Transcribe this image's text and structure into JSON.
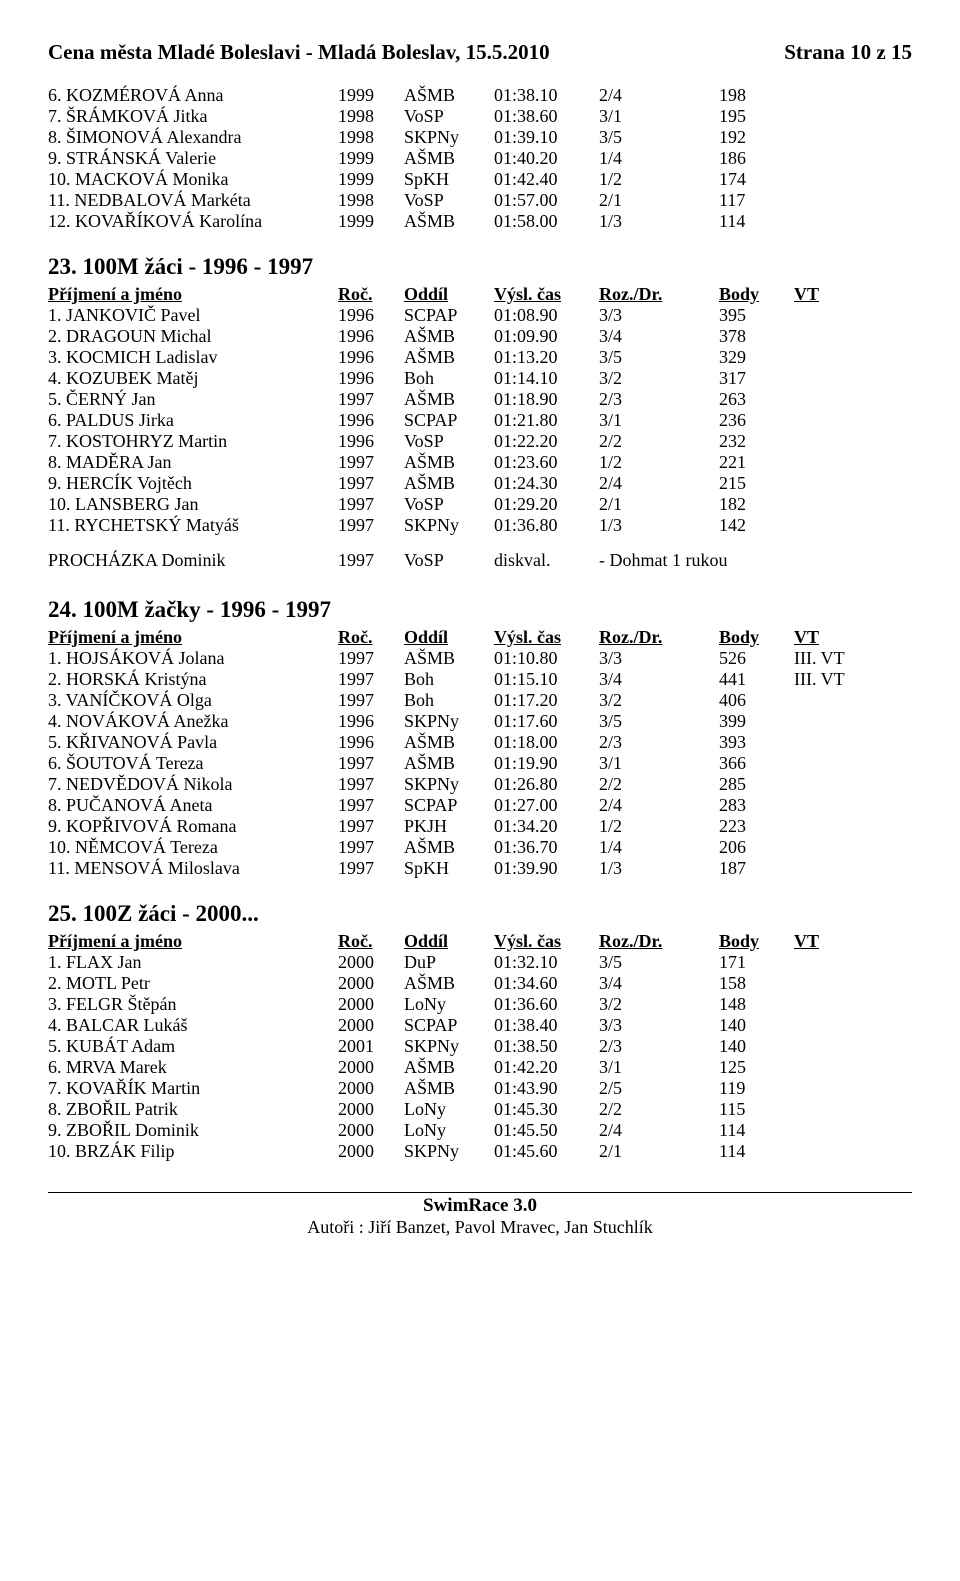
{
  "header": {
    "title": "Cena města Mladé Boleslavi - Mladá Boleslav, 15.5.2010",
    "page": "Strana 10 z 15"
  },
  "columns": {
    "name": "Příjmení a jméno",
    "year": "Roč.",
    "club": "Oddíl",
    "time": "Výsl. čas",
    "roz": "Roz./Dr.",
    "body": "Body",
    "vt": "VT"
  },
  "top_rows": [
    {
      "name": "6. KOZMÉROVÁ Anna",
      "year": "1999",
      "club": "AŠMB",
      "time": "01:38.10",
      "roz": "2/4",
      "body": "198",
      "vt": ""
    },
    {
      "name": "7. ŠRÁMKOVÁ Jitka",
      "year": "1998",
      "club": "VoSP",
      "time": "01:38.60",
      "roz": "3/1",
      "body": "195",
      "vt": ""
    },
    {
      "name": "8. ŠIMONOVÁ Alexandra",
      "year": "1998",
      "club": "SKPNy",
      "time": "01:39.10",
      "roz": "3/5",
      "body": "192",
      "vt": ""
    },
    {
      "name": "9. STRÁNSKÁ Valerie",
      "year": "1999",
      "club": "AŠMB",
      "time": "01:40.20",
      "roz": "1/4",
      "body": "186",
      "vt": ""
    },
    {
      "name": "10. MACKOVÁ Monika",
      "year": "1999",
      "club": "SpKH",
      "time": "01:42.40",
      "roz": "1/2",
      "body": "174",
      "vt": ""
    },
    {
      "name": "11. NEDBALOVÁ Markéta",
      "year": "1998",
      "club": "VoSP",
      "time": "01:57.00",
      "roz": "2/1",
      "body": "117",
      "vt": ""
    },
    {
      "name": "12. KOVAŘÍKOVÁ Karolína",
      "year": "1999",
      "club": "AŠMB",
      "time": "01:58.00",
      "roz": "1/3",
      "body": "114",
      "vt": ""
    }
  ],
  "sections": [
    {
      "title": "23. 100M žáci - 1996 - 1997",
      "rows": [
        {
          "name": "1. JANKOVIČ Pavel",
          "year": "1996",
          "club": "SCPAP",
          "time": "01:08.90",
          "roz": "3/3",
          "body": "395",
          "vt": ""
        },
        {
          "name": "2. DRAGOUN Michal",
          "year": "1996",
          "club": "AŠMB",
          "time": "01:09.90",
          "roz": "3/4",
          "body": "378",
          "vt": ""
        },
        {
          "name": "3. KOCMICH Ladislav",
          "year": "1996",
          "club": "AŠMB",
          "time": "01:13.20",
          "roz": "3/5",
          "body": "329",
          "vt": ""
        },
        {
          "name": "4. KOZUBEK Matěj",
          "year": "1996",
          "club": "Boh",
          "time": "01:14.10",
          "roz": "3/2",
          "body": "317",
          "vt": ""
        },
        {
          "name": "5. ČERNÝ Jan",
          "year": "1997",
          "club": "AŠMB",
          "time": "01:18.90",
          "roz": "2/3",
          "body": "263",
          "vt": ""
        },
        {
          "name": "6. PALDUS Jirka",
          "year": "1996",
          "club": "SCPAP",
          "time": "01:21.80",
          "roz": "3/1",
          "body": "236",
          "vt": ""
        },
        {
          "name": "7. KOSTOHRYZ Martin",
          "year": "1996",
          "club": "VoSP",
          "time": "01:22.20",
          "roz": "2/2",
          "body": "232",
          "vt": ""
        },
        {
          "name": "8. MADĚRA Jan",
          "year": "1997",
          "club": "AŠMB",
          "time": "01:23.60",
          "roz": "1/2",
          "body": "221",
          "vt": ""
        },
        {
          "name": "9. HERCÍK Vojtěch",
          "year": "1997",
          "club": "AŠMB",
          "time": "01:24.30",
          "roz": "2/4",
          "body": "215",
          "vt": ""
        },
        {
          "name": "10. LANSBERG Jan",
          "year": "1997",
          "club": "VoSP",
          "time": "01:29.20",
          "roz": "2/1",
          "body": "182",
          "vt": ""
        },
        {
          "name": "11. RYCHETSKÝ Matyáš",
          "year": "1997",
          "club": "SKPNy",
          "time": "01:36.80",
          "roz": "1/3",
          "body": "142",
          "vt": ""
        }
      ],
      "note": {
        "name": "PROCHÁZKA Dominik",
        "year": "1997",
        "club": "VoSP",
        "time": "diskval.",
        "roz": "- Dohmat 1 rukou",
        "body": "",
        "vt": ""
      }
    },
    {
      "title": "24. 100M žačky - 1996 - 1997",
      "rows": [
        {
          "name": "1. HOJSÁKOVÁ Jolana",
          "year": "1997",
          "club": "AŠMB",
          "time": "01:10.80",
          "roz": "3/3",
          "body": "526",
          "vt": "III. VT"
        },
        {
          "name": "2. HORSKÁ Kristýna",
          "year": "1997",
          "club": "Boh",
          "time": "01:15.10",
          "roz": "3/4",
          "body": "441",
          "vt": "III. VT"
        },
        {
          "name": "3. VANÍČKOVÁ Olga",
          "year": "1997",
          "club": "Boh",
          "time": "01:17.20",
          "roz": "3/2",
          "body": "406",
          "vt": ""
        },
        {
          "name": "4. NOVÁKOVÁ Anežka",
          "year": "1996",
          "club": "SKPNy",
          "time": "01:17.60",
          "roz": "3/5",
          "body": "399",
          "vt": ""
        },
        {
          "name": "5. KŘIVANOVÁ Pavla",
          "year": "1996",
          "club": "AŠMB",
          "time": "01:18.00",
          "roz": "2/3",
          "body": "393",
          "vt": ""
        },
        {
          "name": "6. ŠOUTOVÁ Tereza",
          "year": "1997",
          "club": "AŠMB",
          "time": "01:19.90",
          "roz": "3/1",
          "body": "366",
          "vt": ""
        },
        {
          "name": "7. NEDVĚDOVÁ Nikola",
          "year": "1997",
          "club": "SKPNy",
          "time": "01:26.80",
          "roz": "2/2",
          "body": "285",
          "vt": ""
        },
        {
          "name": "8. PUČANOVÁ Aneta",
          "year": "1997",
          "club": "SCPAP",
          "time": "01:27.00",
          "roz": "2/4",
          "body": "283",
          "vt": ""
        },
        {
          "name": "9. KOPŘIVOVÁ Romana",
          "year": "1997",
          "club": "PKJH",
          "time": "01:34.20",
          "roz": "1/2",
          "body": "223",
          "vt": ""
        },
        {
          "name": "10. NĚMCOVÁ Tereza",
          "year": "1997",
          "club": "AŠMB",
          "time": "01:36.70",
          "roz": "1/4",
          "body": "206",
          "vt": ""
        },
        {
          "name": "11. MENSOVÁ Miloslava",
          "year": "1997",
          "club": "SpKH",
          "time": "01:39.90",
          "roz": "1/3",
          "body": "187",
          "vt": ""
        }
      ]
    },
    {
      "title": "25. 100Z žáci - 2000...",
      "rows": [
        {
          "name": "1. FLAX Jan",
          "year": "2000",
          "club": "DuP",
          "time": "01:32.10",
          "roz": "3/5",
          "body": "171",
          "vt": ""
        },
        {
          "name": "2. MOTL Petr",
          "year": "2000",
          "club": "AŠMB",
          "time": "01:34.60",
          "roz": "3/4",
          "body": "158",
          "vt": ""
        },
        {
          "name": "3. FELGR Štěpán",
          "year": "2000",
          "club": "LoNy",
          "time": "01:36.60",
          "roz": "3/2",
          "body": "148",
          "vt": ""
        },
        {
          "name": "4. BALCAR Lukáš",
          "year": "2000",
          "club": "SCPAP",
          "time": "01:38.40",
          "roz": "3/3",
          "body": "140",
          "vt": ""
        },
        {
          "name": "5. KUBÁT Adam",
          "year": "2001",
          "club": "SKPNy",
          "time": "01:38.50",
          "roz": "2/3",
          "body": "140",
          "vt": ""
        },
        {
          "name": "6. MRVA Marek",
          "year": "2000",
          "club": "AŠMB",
          "time": "01:42.20",
          "roz": "3/1",
          "body": "125",
          "vt": ""
        },
        {
          "name": "7. KOVAŘÍK Martin",
          "year": "2000",
          "club": "AŠMB",
          "time": "01:43.90",
          "roz": "2/5",
          "body": "119",
          "vt": ""
        },
        {
          "name": "8. ZBOŘIL Patrik",
          "year": "2000",
          "club": "LoNy",
          "time": "01:45.30",
          "roz": "2/2",
          "body": "115",
          "vt": ""
        },
        {
          "name": "9. ZBOŘIL Dominik",
          "year": "2000",
          "club": "LoNy",
          "time": "01:45.50",
          "roz": "2/4",
          "body": "114",
          "vt": ""
        },
        {
          "name": "10. BRZÁK Filip",
          "year": "2000",
          "club": "SKPNy",
          "time": "01:45.60",
          "roz": "2/1",
          "body": "114",
          "vt": ""
        }
      ]
    }
  ],
  "footer": {
    "app": "SwimRace 3.0",
    "authors": "Autoři : Jiří Banzet, Pavol Mravec, Jan Stuchlík"
  }
}
